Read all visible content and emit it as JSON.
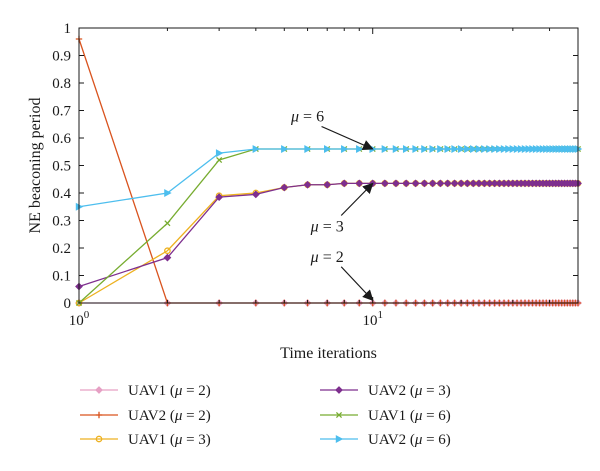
{
  "chart_data": {
    "type": "line",
    "xlabel": "Time iterations",
    "ylabel": "NE beaconing period",
    "xscale": "log",
    "xlim": [
      1,
      50
    ],
    "ylim": [
      0,
      1
    ],
    "xticks": [
      {
        "value": 1,
        "base": "10",
        "exp": "0"
      },
      {
        "value": 10,
        "base": "10",
        "exp": "1"
      }
    ],
    "yticks": [
      "0",
      "0.1",
      "0.2",
      "0.3",
      "0.4",
      "0.5",
      "0.6",
      "0.7",
      "0.8",
      "0.9",
      "1"
    ],
    "grid": false,
    "legend_position": "bottom",
    "series": [
      {
        "name": "UAV1 (μ = 2)",
        "label": "UAV1",
        "param": "2",
        "color": "#e6a0c4",
        "marker": "diamond",
        "x": [
          1,
          2,
          3,
          4,
          5,
          6,
          7,
          8,
          9,
          10,
          11,
          12,
          13,
          14,
          15,
          16,
          17,
          18,
          19,
          20,
          21,
          22,
          23,
          24,
          25,
          26,
          27,
          28,
          29,
          30,
          31,
          32,
          33,
          34,
          35,
          36,
          37,
          38,
          39,
          40,
          41,
          42,
          43,
          44,
          45,
          46,
          47,
          48,
          49,
          50
        ],
        "y": [
          0,
          0,
          0,
          0,
          0,
          0,
          0,
          0,
          0,
          0,
          0,
          0,
          0,
          0,
          0,
          0,
          0,
          0,
          0,
          0,
          0,
          0,
          0,
          0,
          0,
          0,
          0,
          0,
          0,
          0,
          0,
          0,
          0,
          0,
          0,
          0,
          0,
          0,
          0,
          0,
          0,
          0,
          0,
          0,
          0,
          0,
          0,
          0,
          0,
          0
        ]
      },
      {
        "name": "UAV2 (μ = 2)",
        "label": "UAV2",
        "param": "2",
        "color": "#d9531e",
        "marker": "plus",
        "x": [
          1,
          2,
          3,
          4,
          5,
          6,
          7,
          8,
          9,
          10,
          11,
          12,
          13,
          14,
          15,
          16,
          17,
          18,
          19,
          20,
          21,
          22,
          23,
          24,
          25,
          26,
          27,
          28,
          29,
          30,
          31,
          32,
          33,
          34,
          35,
          36,
          37,
          38,
          39,
          40,
          41,
          42,
          43,
          44,
          45,
          46,
          47,
          48,
          49,
          50
        ],
        "y": [
          0.96,
          0,
          0,
          0,
          0,
          0,
          0,
          0,
          0,
          0,
          0,
          0,
          0,
          0,
          0,
          0,
          0,
          0,
          0,
          0,
          0,
          0,
          0,
          0,
          0,
          0,
          0,
          0,
          0,
          0,
          0,
          0,
          0,
          0,
          0,
          0,
          0,
          0,
          0,
          0,
          0,
          0,
          0,
          0,
          0,
          0,
          0,
          0,
          0,
          0
        ]
      },
      {
        "name": "UAV1 (μ = 3)",
        "label": "UAV1",
        "param": "3",
        "color": "#edb120",
        "marker": "circle",
        "x": [
          1,
          2,
          3,
          4,
          5,
          6,
          7,
          8,
          9,
          10,
          11,
          12,
          13,
          14,
          15,
          16,
          17,
          18,
          19,
          20,
          21,
          22,
          23,
          24,
          25,
          26,
          27,
          28,
          29,
          30,
          31,
          32,
          33,
          34,
          35,
          36,
          37,
          38,
          39,
          40,
          41,
          42,
          43,
          44,
          45,
          46,
          47,
          48,
          49,
          50
        ],
        "y": [
          0,
          0.19,
          0.39,
          0.4,
          0.42,
          0.43,
          0.43,
          0.435,
          0.435,
          0.435,
          0.435,
          0.435,
          0.435,
          0.435,
          0.435,
          0.435,
          0.435,
          0.435,
          0.435,
          0.435,
          0.435,
          0.435,
          0.435,
          0.435,
          0.435,
          0.435,
          0.435,
          0.435,
          0.435,
          0.435,
          0.435,
          0.435,
          0.435,
          0.435,
          0.435,
          0.435,
          0.435,
          0.435,
          0.435,
          0.435,
          0.435,
          0.435,
          0.435,
          0.435,
          0.435,
          0.435,
          0.435,
          0.435,
          0.435,
          0.435
        ]
      },
      {
        "name": "UAV2 (μ = 3)",
        "label": "UAV2",
        "param": "3",
        "color": "#7e2f8e",
        "marker": "diamond",
        "x": [
          1,
          2,
          3,
          4,
          5,
          6,
          7,
          8,
          9,
          10,
          11,
          12,
          13,
          14,
          15,
          16,
          17,
          18,
          19,
          20,
          21,
          22,
          23,
          24,
          25,
          26,
          27,
          28,
          29,
          30,
          31,
          32,
          33,
          34,
          35,
          36,
          37,
          38,
          39,
          40,
          41,
          42,
          43,
          44,
          45,
          46,
          47,
          48,
          49,
          50
        ],
        "y": [
          0.06,
          0.165,
          0.385,
          0.395,
          0.42,
          0.43,
          0.43,
          0.435,
          0.435,
          0.435,
          0.435,
          0.435,
          0.435,
          0.435,
          0.435,
          0.435,
          0.435,
          0.435,
          0.435,
          0.435,
          0.435,
          0.435,
          0.435,
          0.435,
          0.435,
          0.435,
          0.435,
          0.435,
          0.435,
          0.435,
          0.435,
          0.435,
          0.435,
          0.435,
          0.435,
          0.435,
          0.435,
          0.435,
          0.435,
          0.435,
          0.435,
          0.435,
          0.435,
          0.435,
          0.435,
          0.435,
          0.435,
          0.435,
          0.435,
          0.435
        ]
      },
      {
        "name": "UAV1 (μ = 6)",
        "label": "UAV1",
        "param": "6",
        "color": "#77ac30",
        "marker": "x",
        "x": [
          1,
          2,
          3,
          4,
          5,
          6,
          7,
          8,
          9,
          10,
          11,
          12,
          13,
          14,
          15,
          16,
          17,
          18,
          19,
          20,
          21,
          22,
          23,
          24,
          25,
          26,
          27,
          28,
          29,
          30,
          31,
          32,
          33,
          34,
          35,
          36,
          37,
          38,
          39,
          40,
          41,
          42,
          43,
          44,
          45,
          46,
          47,
          48,
          49,
          50
        ],
        "y": [
          0,
          0.29,
          0.52,
          0.56,
          0.56,
          0.56,
          0.56,
          0.56,
          0.56,
          0.56,
          0.56,
          0.56,
          0.56,
          0.56,
          0.56,
          0.56,
          0.56,
          0.56,
          0.56,
          0.56,
          0.56,
          0.56,
          0.56,
          0.56,
          0.56,
          0.56,
          0.56,
          0.56,
          0.56,
          0.56,
          0.56,
          0.56,
          0.56,
          0.56,
          0.56,
          0.56,
          0.56,
          0.56,
          0.56,
          0.56,
          0.56,
          0.56,
          0.56,
          0.56,
          0.56,
          0.56,
          0.56,
          0.56,
          0.56,
          0.56
        ]
      },
      {
        "name": "UAV2 (μ = 6)",
        "label": "UAV2",
        "param": "6",
        "color": "#4dbeee",
        "marker": "triangle-right",
        "x": [
          1,
          2,
          3,
          4,
          5,
          6,
          7,
          8,
          9,
          10,
          11,
          12,
          13,
          14,
          15,
          16,
          17,
          18,
          19,
          20,
          21,
          22,
          23,
          24,
          25,
          26,
          27,
          28,
          29,
          30,
          31,
          32,
          33,
          34,
          35,
          36,
          37,
          38,
          39,
          40,
          41,
          42,
          43,
          44,
          45,
          46,
          47,
          48,
          49,
          50
        ],
        "y": [
          0.35,
          0.4,
          0.545,
          0.56,
          0.56,
          0.56,
          0.56,
          0.56,
          0.56,
          0.56,
          0.56,
          0.56,
          0.56,
          0.56,
          0.56,
          0.56,
          0.56,
          0.56,
          0.56,
          0.56,
          0.56,
          0.56,
          0.56,
          0.56,
          0.56,
          0.56,
          0.56,
          0.56,
          0.56,
          0.56,
          0.56,
          0.56,
          0.56,
          0.56,
          0.56,
          0.56,
          0.56,
          0.56,
          0.56,
          0.56,
          0.56,
          0.56,
          0.56,
          0.56,
          0.56,
          0.56,
          0.56,
          0.56,
          0.56,
          0.56
        ]
      }
    ],
    "annotations": [
      {
        "text": "μ = 6",
        "value": "6",
        "x": 6,
        "y": 0.66,
        "arrow_x": 10,
        "arrow_y": 0.56
      },
      {
        "text": "μ = 3",
        "value": "3",
        "x": 7,
        "y": 0.26,
        "arrow_x": 10,
        "arrow_y": 0.435
      },
      {
        "text": "μ = 2",
        "value": "2",
        "x": 7,
        "y": 0.15,
        "arrow_x": 10,
        "arrow_y": 0.01
      }
    ]
  }
}
